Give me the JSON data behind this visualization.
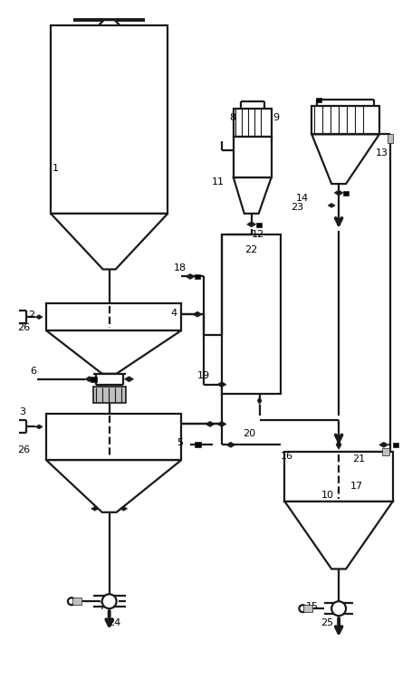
{
  "bg_color": "#ffffff",
  "line_color": "#1a1a1a",
  "lw": 1.6,
  "lw_thick": 2.8,
  "fig_w": 4.56,
  "fig_h": 7.5,
  "dpi": 100
}
